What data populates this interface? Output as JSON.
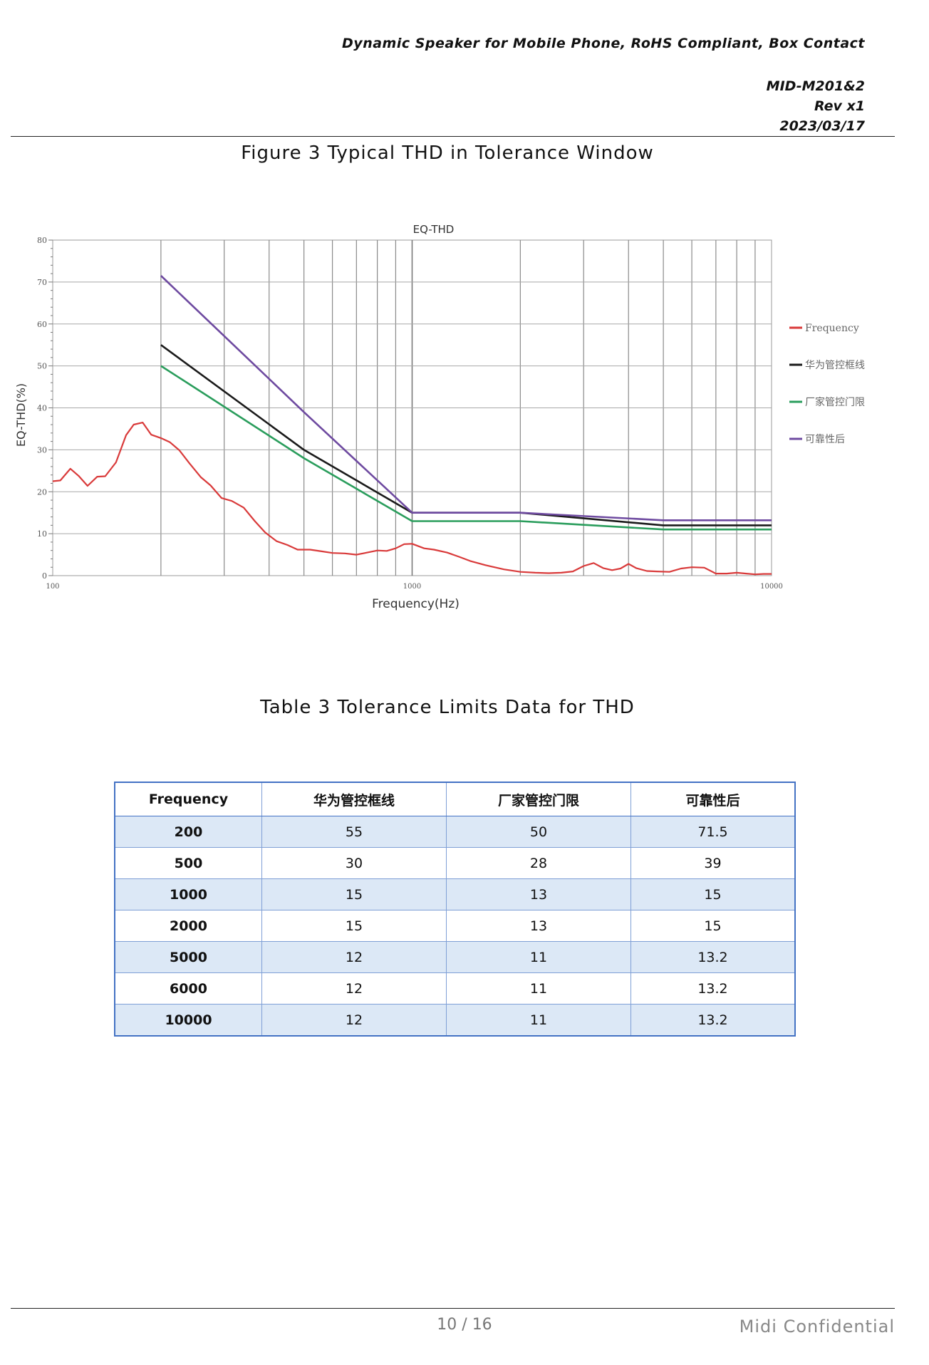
{
  "header": {
    "title": "Dynamic Speaker for Mobile Phone, RoHS Compliant, Box Contact",
    "doc_no": "MID-M201&2",
    "rev": "Rev x1",
    "date": "2023/03/17"
  },
  "figure_caption": "Figure 3 Typical THD in Tolerance Window",
  "table_caption": "Table 3 Tolerance Limits Data for THD",
  "chart_data": {
    "type": "line",
    "title": "EQ-THD",
    "xlabel": "Frequency(Hz)",
    "ylabel": "EQ-THD(%)",
    "xscale": "log",
    "xlim": [
      100,
      10000
    ],
    "ylim": [
      0,
      80
    ],
    "x_ticks": [
      "100",
      "1000",
      "10000"
    ],
    "y_ticks": [
      "0",
      "10",
      "20",
      "30",
      "40",
      "50",
      "60",
      "70",
      "80"
    ],
    "grid": true,
    "legend_position": "right",
    "series": [
      {
        "name": "Frequency",
        "color": "#d93a3a",
        "x": [
          100,
          105,
          112,
          118,
          125,
          133,
          140,
          150,
          160,
          168,
          178,
          188,
          200,
          212,
          225,
          240,
          258,
          275,
          295,
          315,
          340,
          365,
          390,
          420,
          450,
          480,
          520,
          560,
          600,
          650,
          700,
          750,
          800,
          850,
          900,
          950,
          1000,
          1080,
          1150,
          1250,
          1350,
          1450,
          1600,
          1800,
          2000,
          2200,
          2400,
          2600,
          2800,
          3000,
          3200,
          3400,
          3600,
          3800,
          4000,
          4200,
          4500,
          4800,
          5200,
          5600,
          6000,
          6500,
          7000,
          7500,
          8000,
          8500,
          9000,
          9500,
          10000
        ],
        "y": [
          22.5,
          22.7,
          25.5,
          23.8,
          21.4,
          23.6,
          23.7,
          27.0,
          33.5,
          36.0,
          36.5,
          33.6,
          32.8,
          31.8,
          29.9,
          26.8,
          23.5,
          21.5,
          18.5,
          17.8,
          16.2,
          13.0,
          10.3,
          8.2,
          7.3,
          6.2,
          6.2,
          5.8,
          5.4,
          5.3,
          5.0,
          5.5,
          6.0,
          5.9,
          6.5,
          7.5,
          7.6,
          6.5,
          6.2,
          5.5,
          4.5,
          3.5,
          2.5,
          1.5,
          0.9,
          0.7,
          0.6,
          0.7,
          1.0,
          2.3,
          3.0,
          1.8,
          1.3,
          1.7,
          2.8,
          1.8,
          1.1,
          1.0,
          0.9,
          1.7,
          2.0,
          1.9,
          0.5,
          0.5,
          0.7,
          0.5,
          0.3,
          0.4,
          0.4
        ]
      },
      {
        "name": "华为管控框线",
        "color": "#1a1a1a",
        "x": [
          200,
          500,
          1000,
          2000,
          5000,
          6000,
          10000
        ],
        "y": [
          55,
          30,
          15,
          15,
          12,
          12,
          12
        ]
      },
      {
        "name": "厂家管控门限",
        "color": "#2a9d5c",
        "x": [
          200,
          500,
          1000,
          2000,
          5000,
          6000,
          10000
        ],
        "y": [
          50,
          28,
          13,
          13,
          11,
          11,
          11
        ]
      },
      {
        "name": "可靠性后",
        "color": "#6e4aa0",
        "x": [
          200,
          500,
          1000,
          2000,
          5000,
          6000,
          10000
        ],
        "y": [
          71.5,
          39,
          15,
          15,
          13.2,
          13.2,
          13.2
        ]
      }
    ]
  },
  "table": {
    "headers": [
      "Frequency",
      "华为管控框线",
      "厂家管控门限",
      "可靠性后"
    ],
    "rows": [
      [
        "200",
        "55",
        "50",
        "71.5"
      ],
      [
        "500",
        "30",
        "28",
        "39"
      ],
      [
        "1000",
        "15",
        "13",
        "15"
      ],
      [
        "2000",
        "15",
        "13",
        "15"
      ],
      [
        "5000",
        "12",
        "11",
        "13.2"
      ],
      [
        "6000",
        "12",
        "11",
        "13.2"
      ],
      [
        "10000",
        "12",
        "11",
        "13.2"
      ]
    ]
  },
  "footer": {
    "page": "10 / 16",
    "confidential": "Midi  Confidential"
  }
}
